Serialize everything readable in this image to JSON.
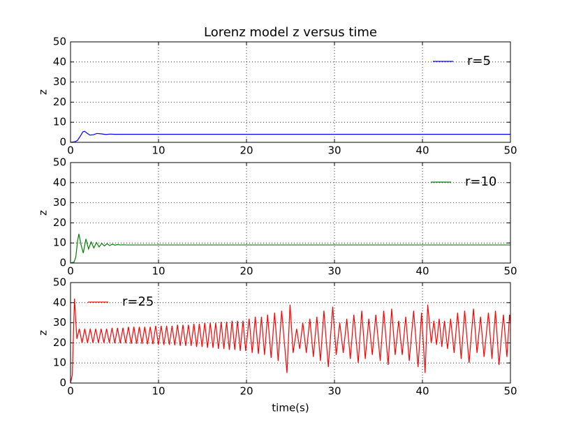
{
  "chart_data": [
    {
      "type": "line",
      "title": "Lorenz model  z versus time",
      "ylabel": "z",
      "legend": "upper right",
      "grid": true,
      "xlim": [
        0,
        50
      ],
      "xticks": [
        0,
        10,
        20,
        30,
        40,
        50
      ],
      "ylim": [
        0,
        50
      ],
      "yticks": [
        0,
        10,
        20,
        30,
        40,
        50
      ],
      "x": [
        0,
        0.5,
        0.8,
        1.1,
        1.4,
        1.6,
        1.9,
        2.2,
        2.6,
        3.0,
        3.5,
        4.0,
        4.5,
        5,
        6,
        8,
        50
      ],
      "series": [
        {
          "name": "r=5",
          "color": "#0000ff",
          "values": [
            0,
            0.3,
            1,
            3,
            5.2,
            5.5,
            4.5,
            3.6,
            3.8,
            4.4,
            4.2,
            3.9,
            4.1,
            4,
            4,
            4,
            4
          ]
        }
      ]
    },
    {
      "type": "line",
      "ylabel": "z",
      "legend": "upper right",
      "grid": true,
      "xlim": [
        0,
        50
      ],
      "xticks": [
        0,
        10,
        20,
        30,
        40,
        50
      ],
      "ylim": [
        0,
        50
      ],
      "yticks": [
        0,
        10,
        20,
        30,
        40,
        50
      ],
      "x": [
        0,
        0.4,
        0.6,
        0.8,
        0.95,
        1.2,
        1.45,
        1.75,
        2.05,
        2.35,
        2.65,
        2.95,
        3.25,
        3.55,
        3.85,
        4.15,
        4.45,
        4.75,
        5.05,
        5.35,
        5.65,
        6,
        6.4,
        7,
        8,
        50
      ],
      "series": [
        {
          "name": "r=10",
          "color": "#008000",
          "values": [
            0,
            0.5,
            3,
            11,
            14.5,
            9,
            5,
            12,
            7,
            10.5,
            7.5,
            10.2,
            8,
            9.8,
            8.5,
            9.6,
            8.7,
            9.4,
            8.9,
            9.2,
            9,
            9.1,
            9,
            9,
            9,
            9
          ]
        }
      ]
    },
    {
      "type": "line",
      "xlabel": "time(s)",
      "ylabel": "z",
      "legend": "upper left",
      "grid": true,
      "xlim": [
        0,
        50
      ],
      "xticks": [
        0,
        10,
        20,
        30,
        40,
        50
      ],
      "ylim": [
        0,
        50
      ],
      "yticks": [
        0,
        10,
        20,
        30,
        40,
        50
      ],
      "x": [
        0,
        0.2,
        0.45,
        0.72,
        1.0,
        1.31,
        1.62,
        1.93,
        2.24,
        2.55,
        2.86,
        3.17,
        3.48,
        3.79,
        4.1,
        4.41,
        4.72,
        5.03,
        5.34,
        5.65,
        5.96,
        6.27,
        6.58,
        6.89,
        7.2,
        7.51,
        7.82,
        8.13,
        8.44,
        8.75,
        9.06,
        9.37,
        9.68,
        9.99,
        10.3,
        10.61,
        10.92,
        11.23,
        11.54,
        11.85,
        12.16,
        12.47,
        12.78,
        13.09,
        13.4,
        13.71,
        14.02,
        14.33,
        14.64,
        14.95,
        15.26,
        15.57,
        15.88,
        16.19,
        16.5,
        16.81,
        17.12,
        17.43,
        17.74,
        18.05,
        18.36,
        18.67,
        18.98,
        19.29,
        19.6,
        19.91,
        20.3,
        20.65,
        21.0,
        21.35,
        21.7,
        22.05,
        22.4,
        22.8,
        23.2,
        23.6,
        24.0,
        24.6,
        24.95,
        25.3,
        25.7,
        26.05,
        26.4,
        26.8,
        27.2,
        27.6,
        28.0,
        28.4,
        28.8,
        29.3,
        29.8,
        30.2,
        30.6,
        31.0,
        31.4,
        31.8,
        32.2,
        32.7,
        33.1,
        33.5,
        33.9,
        34.3,
        34.7,
        35.2,
        35.6,
        36.1,
        36.5,
        36.9,
        37.3,
        37.7,
        38.1,
        38.5,
        39.0,
        39.5,
        39.9,
        40.3,
        40.6,
        41.0,
        41.3,
        41.6,
        41.9,
        42.2,
        42.5,
        42.85,
        43.2,
        43.6,
        44.0,
        44.4,
        44.8,
        45.3,
        45.8,
        46.2,
        46.6,
        47.0,
        47.5,
        47.9,
        48.3,
        48.7,
        49.2,
        49.6,
        49.9,
        50
      ],
      "series": [
        {
          "name": "r=25",
          "color": "#ff0000",
          "values": [
            0,
            4,
            42,
            22,
            27,
            20,
            27,
            20,
            27,
            20,
            27,
            20,
            27,
            20,
            27,
            20,
            27.5,
            19.8,
            27.5,
            19.8,
            27.5,
            19.8,
            28,
            19.5,
            28,
            19.5,
            28,
            19.5,
            28,
            19.3,
            28,
            19.3,
            28.5,
            19,
            28.5,
            19,
            28.5,
            19,
            28.5,
            18.8,
            29,
            18.5,
            29,
            18.5,
            29,
            18.5,
            29.5,
            18,
            29.5,
            18,
            30,
            17.5,
            30,
            17.5,
            30,
            17,
            30.5,
            17,
            30.5,
            16.5,
            31,
            16.5,
            31,
            16,
            31,
            16,
            32,
            15,
            33,
            14.5,
            33,
            14,
            34,
            12.5,
            35,
            11,
            36,
            5,
            39,
            15,
            27,
            17,
            30,
            15,
            32,
            13,
            33,
            11,
            36,
            8,
            38,
            14,
            30,
            15,
            32,
            12,
            34,
            10,
            36,
            12,
            32,
            14,
            34,
            11,
            36,
            9,
            37,
            14,
            31,
            14,
            33,
            11,
            36,
            8,
            35,
            5,
            39,
            20,
            31,
            19,
            32,
            18,
            31,
            17,
            32,
            15,
            35,
            12,
            36,
            10,
            37,
            15,
            33,
            13,
            35,
            12,
            36,
            9,
            34,
            13,
            34,
            30
          ]
        }
      ]
    }
  ]
}
